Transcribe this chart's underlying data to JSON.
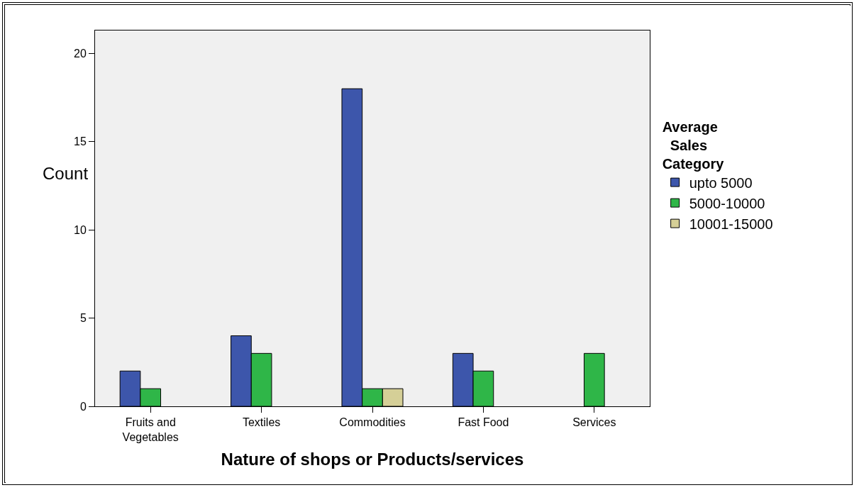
{
  "chart_data": {
    "type": "bar",
    "xlabel": "Nature of shops or Products/services",
    "ylabel": "Count",
    "legend_title": "Average Sales Category",
    "categories": [
      "Fruits and Vegetables",
      "Textiles",
      "Commodities",
      "Fast Food",
      "Services"
    ],
    "series": [
      {
        "name": "upto 5000",
        "color": "#3d56ab",
        "values": [
          2,
          4,
          18,
          3,
          null
        ]
      },
      {
        "name": "5000-10000",
        "color": "#2fb648",
        "values": [
          1,
          3,
          1,
          2,
          3
        ]
      },
      {
        "name": "10001-15000",
        "color": "#d5cf97",
        "values": [
          null,
          null,
          1,
          null,
          null
        ]
      }
    ],
    "ylim": [
      0,
      21.3
    ],
    "yticks": [
      0,
      5,
      10,
      15,
      20
    ],
    "grid": false,
    "legend": "right"
  }
}
